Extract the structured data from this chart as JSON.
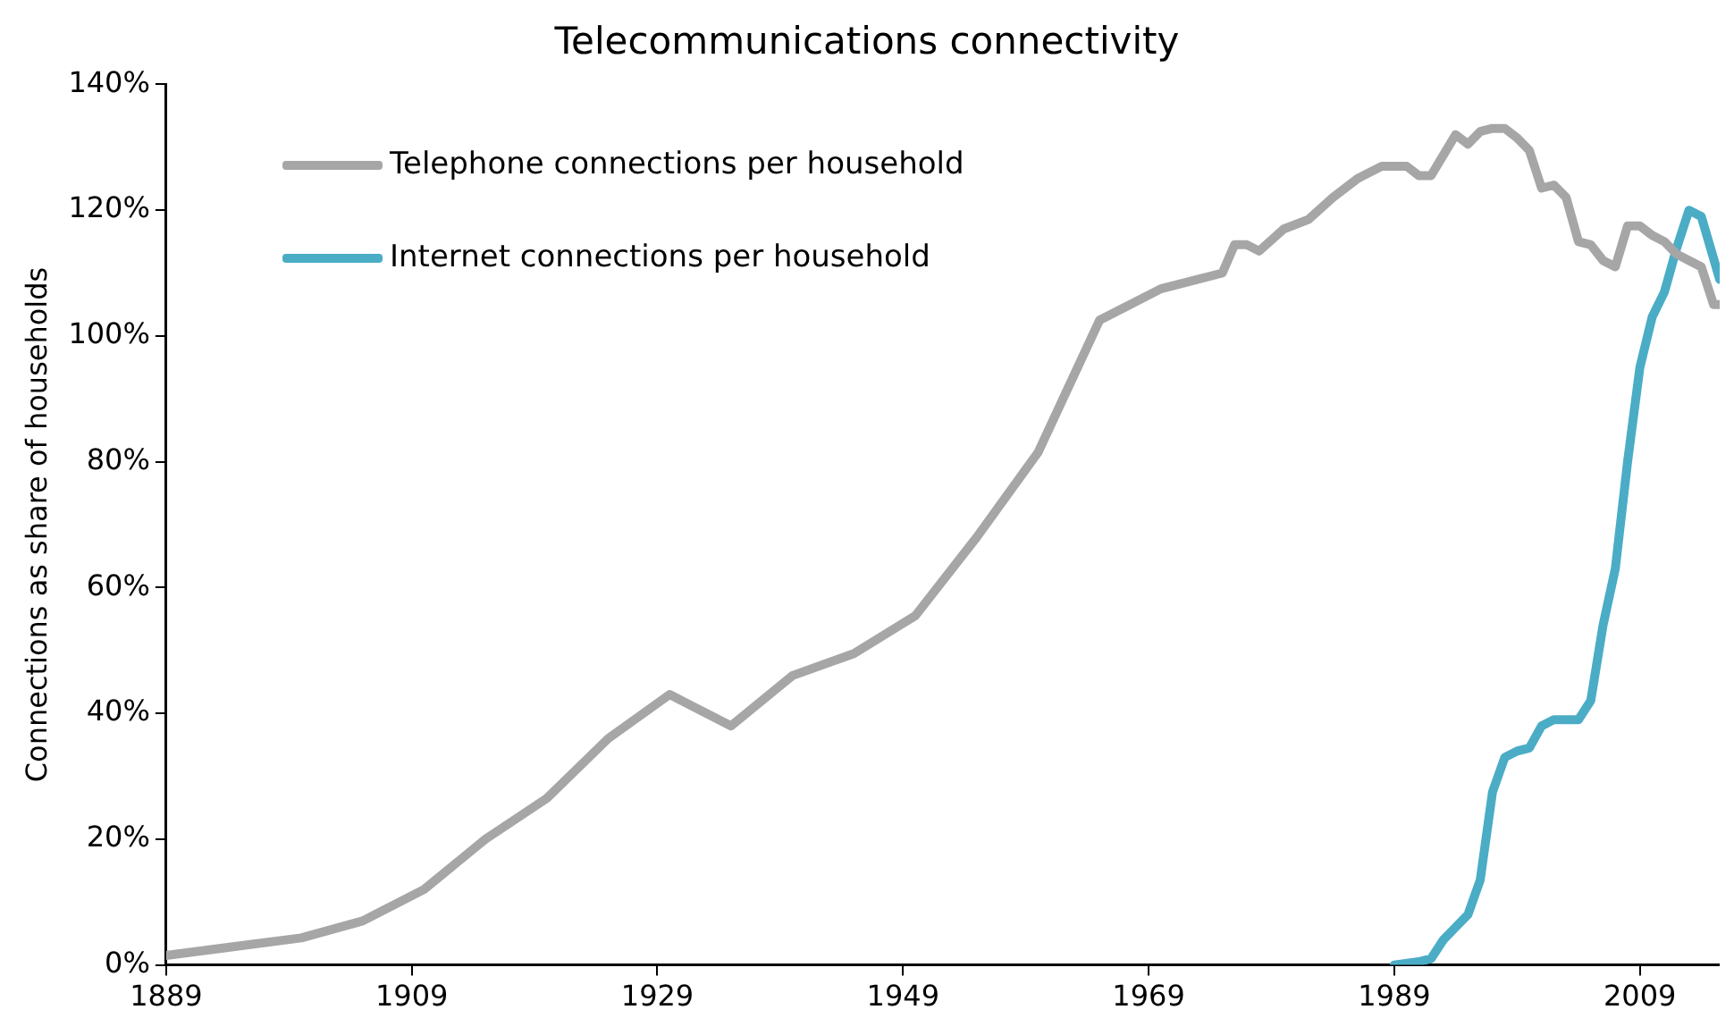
{
  "chart_data": {
    "type": "line",
    "title": "Telecommunications connectivity",
    "ylabel": "Connections as share of households",
    "xlim": [
      1889,
      2015.5
    ],
    "xticks": [
      1889,
      1909,
      1929,
      1949,
      1969,
      1989,
      2009
    ],
    "ylim": [
      0,
      140
    ],
    "yticks": [
      {
        "value": 0,
        "label": "0%"
      },
      {
        "value": 20,
        "label": "20%"
      },
      {
        "value": 40,
        "label": "40%"
      },
      {
        "value": 60,
        "label": "60%"
      },
      {
        "value": 80,
        "label": "80%"
      },
      {
        "value": 100,
        "label": "100%"
      },
      {
        "value": 120,
        "label": "120%"
      },
      {
        "value": 140,
        "label": "140%"
      }
    ],
    "grid": false,
    "legend": "top left",
    "marker": "none",
    "line_style": "solid",
    "series": [
      {
        "name": "Telephone connections per household",
        "color": "#a6a6a6",
        "x": [
          1889,
          1900,
          1905,
          1910,
          1915,
          1920,
          1925,
          1930,
          1935,
          1940,
          1945,
          1950,
          1955,
          1960,
          1965,
          1970,
          1975,
          1976,
          1977,
          1978,
          1980,
          1982,
          1984,
          1986,
          1988,
          1990,
          1991,
          1992,
          1994,
          1995,
          1996,
          1997,
          1998,
          1999,
          2000,
          2001,
          2002,
          2003,
          2004,
          2005,
          2006,
          2007,
          2008,
          2009,
          2010,
          2011,
          2012,
          2013,
          2014,
          2015,
          2015.5
        ],
        "values": [
          1.5,
          4.3,
          7,
          12,
          20,
          26.5,
          36,
          43,
          38,
          46,
          49.5,
          55.5,
          68,
          81.5,
          102.5,
          107.5,
          110,
          114.5,
          114.5,
          113.5,
          117,
          118.5,
          122,
          125,
          127,
          127,
          125.5,
          125.5,
          132,
          130.5,
          132.5,
          133,
          133,
          131.5,
          129.5,
          123.5,
          124,
          122,
          115,
          114.5,
          112,
          111,
          117.5,
          117.5,
          116,
          115,
          113,
          112,
          111,
          105,
          105
        ]
      },
      {
        "name": "Internet connections per household",
        "color": "#4bacc6",
        "x": [
          1989,
          1991,
          1992,
          1993,
          1994,
          1995,
          1996,
          1997,
          1998,
          1999,
          2000,
          2001,
          2002,
          2003,
          2004,
          2005,
          2006,
          2007,
          2008,
          2009,
          2010,
          2011,
          2012,
          2013,
          2014,
          2015.5
        ],
        "values": [
          0,
          0.5,
          1,
          4,
          6,
          8,
          13.5,
          27.5,
          33,
          34,
          34.5,
          38,
          39,
          39,
          39,
          42,
          54,
          63,
          80,
          95,
          103,
          107,
          114,
          120,
          119,
          109
        ]
      }
    ]
  }
}
